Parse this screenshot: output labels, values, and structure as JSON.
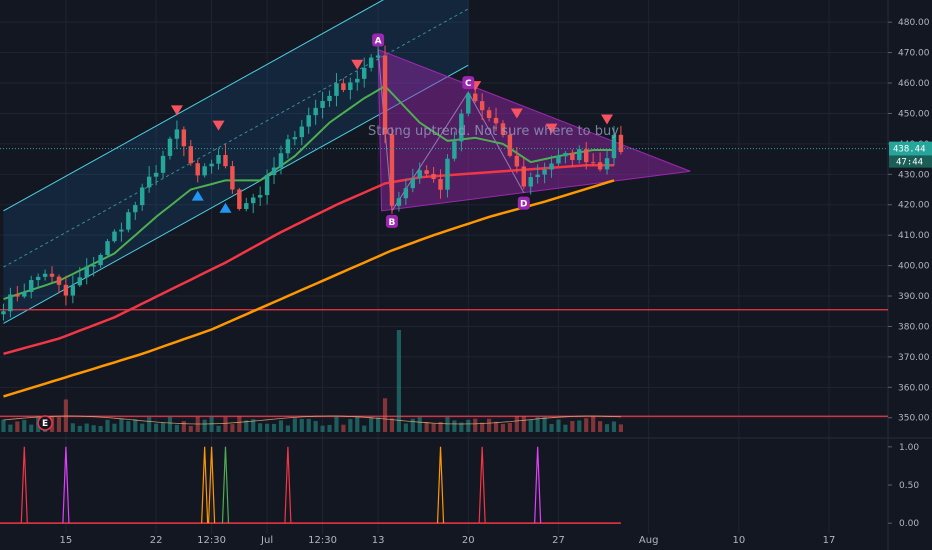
{
  "chart_data": [
    {
      "type": "candlestick",
      "y_ticks": [
        "480.00",
        "470.00",
        "460.00",
        "450.00",
        "440.00",
        "430.00",
        "420.00",
        "410.00",
        "400.00",
        "390.00",
        "380.00",
        "370.00",
        "360.00",
        "350.00"
      ],
      "y_tick_values": [
        480,
        470,
        460,
        450,
        440,
        430,
        420,
        410,
        400,
        390,
        380,
        370,
        360,
        350
      ],
      "ylim": [
        344,
        484
      ],
      "x_ticks": [
        "15",
        "22",
        "12:30",
        "Jul",
        "12:30",
        "13",
        "20",
        "27",
        "Aug",
        "10",
        "17"
      ],
      "x_tick_index": [
        9,
        22,
        30,
        38,
        46,
        54,
        67,
        80,
        93,
        106,
        119
      ],
      "bar_count": 128,
      "price_badge": "438.44",
      "price_badge_value": 438.44,
      "countdown_badge": "47:44",
      "annotation": "Strong uptrend. Not sure where to buy",
      "pattern_points": [
        {
          "label": "A",
          "index": 54,
          "value": 471
        },
        {
          "label": "B",
          "index": 56,
          "value": 418
        },
        {
          "label": "C",
          "index": 67,
          "value": 457
        },
        {
          "label": "D",
          "index": 75,
          "value": 424
        }
      ],
      "support_lines": [
        385.5,
        350.5
      ],
      "colors": {
        "up": "#26a69a",
        "down": "#ef5350",
        "ma_green": "#4caf50",
        "ma_red": "#f23645",
        "ma_orange": "#ff9800",
        "pattern": "#9c27b0",
        "channel": "#4dd0e1"
      },
      "ma_green": [
        {
          "i": 0,
          "v": 389
        },
        {
          "i": 8,
          "v": 395
        },
        {
          "i": 16,
          "v": 404
        },
        {
          "i": 22,
          "v": 416
        },
        {
          "i": 27,
          "v": 425
        },
        {
          "i": 32,
          "v": 428
        },
        {
          "i": 37,
          "v": 428
        },
        {
          "i": 42,
          "v": 436
        },
        {
          "i": 47,
          "v": 447
        },
        {
          "i": 52,
          "v": 455
        },
        {
          "i": 55,
          "v": 459
        },
        {
          "i": 60,
          "v": 447
        },
        {
          "i": 64,
          "v": 441
        },
        {
          "i": 68,
          "v": 442
        },
        {
          "i": 72,
          "v": 440
        },
        {
          "i": 76,
          "v": 434
        },
        {
          "i": 80,
          "v": 436
        },
        {
          "i": 85,
          "v": 438
        },
        {
          "i": 88,
          "v": 438
        }
      ],
      "ma_red": [
        {
          "i": 0,
          "v": 371
        },
        {
          "i": 8,
          "v": 376
        },
        {
          "i": 16,
          "v": 383
        },
        {
          "i": 24,
          "v": 392
        },
        {
          "i": 32,
          "v": 401
        },
        {
          "i": 40,
          "v": 411
        },
        {
          "i": 48,
          "v": 420
        },
        {
          "i": 55,
          "v": 427
        },
        {
          "i": 60,
          "v": 429
        },
        {
          "i": 66,
          "v": 430
        },
        {
          "i": 72,
          "v": 431
        },
        {
          "i": 78,
          "v": 432
        },
        {
          "i": 84,
          "v": 433
        },
        {
          "i": 88,
          "v": 433
        }
      ],
      "ma_orange": [
        {
          "i": 0,
          "v": 357
        },
        {
          "i": 10,
          "v": 364
        },
        {
          "i": 20,
          "v": 371
        },
        {
          "i": 30,
          "v": 379
        },
        {
          "i": 40,
          "v": 389
        },
        {
          "i": 50,
          "v": 399
        },
        {
          "i": 56,
          "v": 405
        },
        {
          "i": 62,
          "v": 410
        },
        {
          "i": 70,
          "v": 416
        },
        {
          "i": 78,
          "v": 421
        },
        {
          "i": 88,
          "v": 428
        }
      ],
      "markers_down": [
        {
          "index": 25,
          "value": 451
        },
        {
          "index": 31,
          "value": 446
        },
        {
          "index": 51,
          "value": 466
        },
        {
          "index": 68,
          "value": 459
        },
        {
          "index": 74,
          "value": 450
        },
        {
          "index": 79,
          "value": 445
        },
        {
          "index": 87,
          "value": 448
        }
      ],
      "markers_up": [
        {
          "index": 28,
          "value": 423
        },
        {
          "index": 32,
          "value": 419
        }
      ],
      "event_marker": "E",
      "event_index": 6
    },
    {
      "type": "line",
      "y_ticks": [
        "1.00",
        "0.50",
        "0.00"
      ],
      "y_tick_values": [
        1,
        0.5,
        0
      ],
      "ylim": [
        -0.05,
        1.05
      ],
      "spikes": [
        {
          "index": 3,
          "value": 1,
          "color": "#f23645"
        },
        {
          "index": 9,
          "value": 1,
          "color": "#e040fb"
        },
        {
          "index": 29,
          "value": 1,
          "color": "#ff9800"
        },
        {
          "index": 30,
          "value": 1,
          "color": "#ff9800"
        },
        {
          "index": 32,
          "value": 1,
          "color": "#4caf50"
        },
        {
          "index": 41,
          "value": 1,
          "color": "#f23645"
        },
        {
          "index": 63,
          "value": 1,
          "color": "#ff9800"
        },
        {
          "index": 69,
          "value": 1,
          "color": "#f23645"
        },
        {
          "index": 77,
          "value": 1,
          "color": "#e040fb"
        }
      ]
    }
  ]
}
